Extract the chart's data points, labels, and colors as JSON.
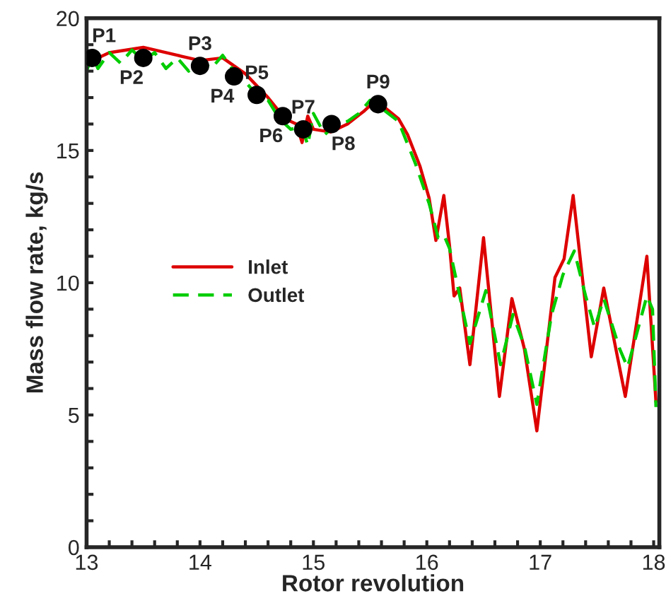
{
  "chart_data": {
    "type": "line",
    "xlabel": "Rotor revolution",
    "ylabel": "Mass flow rate, kg/s",
    "xlim": [
      13,
      18.05
    ],
    "ylim": [
      0,
      20
    ],
    "xticks": [
      13,
      {
        "value": 13.2,
        "label": null
      },
      {
        "value": 13.4,
        "label": null
      },
      {
        "value": 13.6,
        "label": null
      },
      {
        "value": 13.8,
        "label": null
      },
      14,
      {
        "value": 14.2,
        "label": null
      },
      {
        "value": 14.4,
        "label": null
      },
      {
        "value": 14.6,
        "label": null
      },
      {
        "value": 14.8,
        "label": null
      },
      15,
      {
        "value": 15.2,
        "label": null
      },
      {
        "value": 15.4,
        "label": null
      },
      {
        "value": 15.6,
        "label": null
      },
      {
        "value": 15.8,
        "label": null
      },
      16,
      {
        "value": 16.2,
        "label": null
      },
      {
        "value": 16.4,
        "label": null
      },
      {
        "value": 16.6,
        "label": null
      },
      {
        "value": 16.8,
        "label": null
      },
      17,
      {
        "value": 17.2,
        "label": null
      },
      {
        "value": 17.4,
        "label": null
      },
      {
        "value": 17.6,
        "label": null
      },
      {
        "value": 17.8,
        "label": null
      },
      18
    ],
    "yticks": [
      0,
      {
        "value": 1,
        "label": null
      },
      {
        "value": 2,
        "label": null
      },
      {
        "value": 3,
        "label": null
      },
      {
        "value": 4,
        "label": null
      },
      5,
      {
        "value": 6,
        "label": null
      },
      {
        "value": 7,
        "label": null
      },
      {
        "value": 8,
        "label": null
      },
      {
        "value": 9,
        "label": null
      },
      10,
      {
        "value": 11,
        "label": null
      },
      {
        "value": 12,
        "label": null
      },
      {
        "value": 13,
        "label": null
      },
      {
        "value": 14,
        "label": null
      },
      15,
      {
        "value": 16,
        "label": null
      },
      {
        "value": 17,
        "label": null
      },
      {
        "value": 18,
        "label": null
      },
      {
        "value": 19,
        "label": null
      },
      20
    ],
    "grid": false,
    "legend": "left",
    "series": [
      {
        "name": "Inlet",
        "color": "#dd0000",
        "line_style": "solid",
        "x": [
          13.0,
          13.2,
          13.5,
          13.8,
          14.0,
          14.2,
          14.4,
          14.6,
          14.75,
          14.85,
          14.9,
          14.95,
          15.0,
          15.15,
          15.3,
          15.45,
          15.55,
          15.75,
          15.83,
          15.94,
          16.02,
          16.08,
          16.15,
          16.2,
          16.24,
          16.29,
          16.38,
          16.5,
          16.64,
          16.75,
          16.86,
          16.97,
          17.13,
          17.21,
          17.29,
          17.45,
          17.56,
          17.75,
          17.94,
          18.02
        ],
        "values": [
          18.3,
          18.7,
          18.9,
          18.6,
          18.4,
          18.5,
          17.9,
          17.0,
          16.2,
          16.0,
          15.3,
          16.3,
          15.8,
          15.7,
          16.0,
          16.5,
          16.9,
          16.2,
          15.6,
          14.4,
          13.2,
          11.6,
          13.3,
          11.4,
          9.5,
          9.8,
          6.9,
          11.7,
          5.7,
          9.4,
          7.5,
          4.4,
          10.2,
          10.9,
          13.3,
          7.2,
          9.8,
          5.7,
          11.0,
          5.5
        ]
      },
      {
        "name": "Outlet",
        "color": "#00cc00",
        "line_style": "dashed",
        "x": [
          13.0,
          13.05,
          13.1,
          13.2,
          13.3,
          13.4,
          13.5,
          13.6,
          13.7,
          13.8,
          13.9,
          14.0,
          14.1,
          14.2,
          14.3,
          14.4,
          14.5,
          14.6,
          14.7,
          14.8,
          14.9,
          14.95,
          15.0,
          15.1,
          15.2,
          15.3,
          15.4,
          15.5,
          15.6,
          15.75,
          15.9,
          16.02,
          16.1,
          16.15,
          16.2,
          16.25,
          16.38,
          16.52,
          16.65,
          16.76,
          16.86,
          16.97,
          17.1,
          17.2,
          17.3,
          17.4,
          17.48,
          17.56,
          17.7,
          17.77,
          17.94,
          17.99,
          18.02
        ],
        "values": [
          18.0,
          18.6,
          18.1,
          18.7,
          18.3,
          18.8,
          18.4,
          18.7,
          18.1,
          18.5,
          18.0,
          18.4,
          18.1,
          18.6,
          18.0,
          17.6,
          17.1,
          16.9,
          16.2,
          15.8,
          15.9,
          15.2,
          16.4,
          15.6,
          16.0,
          16.1,
          16.4,
          16.9,
          16.6,
          16.1,
          14.5,
          13.0,
          11.7,
          11.8,
          11.3,
          10.3,
          7.7,
          9.7,
          6.9,
          8.8,
          7.6,
          5.4,
          8.8,
          10.3,
          11.2,
          9.5,
          8.3,
          9.4,
          7.5,
          6.8,
          9.5,
          9.0,
          5.3
        ]
      },
      {
        "type": "scatter",
        "color": "#000000",
        "marker": "circle",
        "x": [
          13.05,
          13.5,
          14.0,
          14.3,
          14.5,
          14.73,
          14.91,
          15.16,
          15.57
        ],
        "values": [
          18.5,
          18.5,
          18.2,
          17.8,
          17.1,
          16.3,
          15.8,
          16.0,
          16.75
        ]
      }
    ],
    "annotations": [
      {
        "text": "P1",
        "x": 13.05,
        "y": 18.5
      },
      {
        "text": "P2",
        "x": 13.5,
        "y": 18.5
      },
      {
        "text": "P3",
        "x": 14.0,
        "y": 18.2
      },
      {
        "text": "P4",
        "x": 14.3,
        "y": 17.8
      },
      {
        "text": "P5",
        "x": 14.5,
        "y": 17.1
      },
      {
        "text": "P6",
        "x": 14.73,
        "y": 16.3
      },
      {
        "text": "P7",
        "x": 14.91,
        "y": 15.8
      },
      {
        "text": "P8",
        "x": 15.16,
        "y": 16.0
      },
      {
        "text": "P9",
        "x": 15.57,
        "y": 16.75
      }
    ]
  }
}
